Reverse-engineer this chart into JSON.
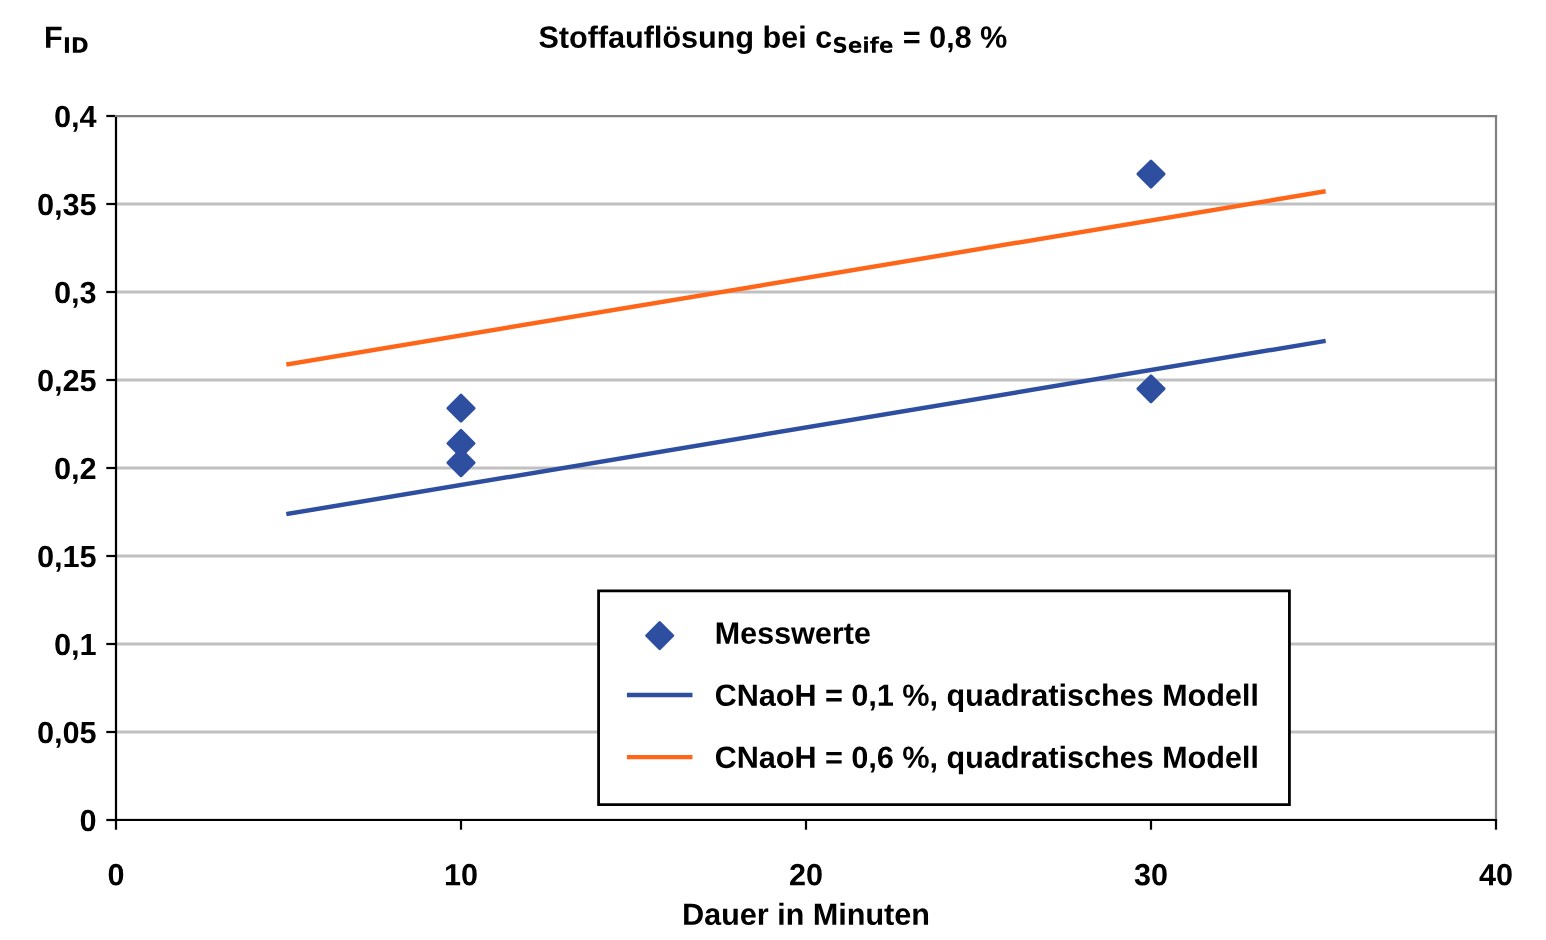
{
  "chart_data": {
    "type": "line",
    "title": "Stoffauflösung bei c$_{Seife}$ = 0,8 %",
    "ylabel": "F$_{ID}$",
    "xlabel": "Dauer in Minuten",
    "series": [
      {
        "name": "Messwerte",
        "type": "scatter",
        "marker": "diamond",
        "color": "#2e4ea0",
        "x": [
          10,
          10,
          10,
          30,
          30
        ],
        "values": [
          0.234,
          0.214,
          0.203,
          0.367,
          0.245
        ]
      },
      {
        "name": "CNaoH = 0,1 %, quadratisches Modell",
        "color": "#2e4ea0",
        "x": [
          5,
          35
        ],
        "values": [
          0.174,
          0.272
        ]
      },
      {
        "name": "CNaoH = 0,6 %, quadratisches Modell",
        "color": "#ff6619",
        "x": [
          5,
          35
        ],
        "values": [
          0.259,
          0.357
        ]
      }
    ],
    "xlim": [
      0,
      40
    ],
    "xticks": [
      0,
      10,
      20,
      30,
      40
    ],
    "ylim": [
      0,
      0.4
    ],
    "yticks": [
      {
        "value": 0,
        "label": "0"
      },
      {
        "value": 0.05,
        "label": "0,05"
      },
      {
        "value": 0.1,
        "label": "0,1"
      },
      {
        "value": 0.15,
        "label": "0,15"
      },
      {
        "value": 0.2,
        "label": "0,2"
      },
      {
        "value": 0.25,
        "label": "0,25"
      },
      {
        "value": 0.3,
        "label": "0,3"
      },
      {
        "value": 0.35,
        "label": "0,35"
      },
      {
        "value": 0.4,
        "label": "0,4"
      }
    ],
    "grid": "y",
    "legend": "bottom"
  }
}
